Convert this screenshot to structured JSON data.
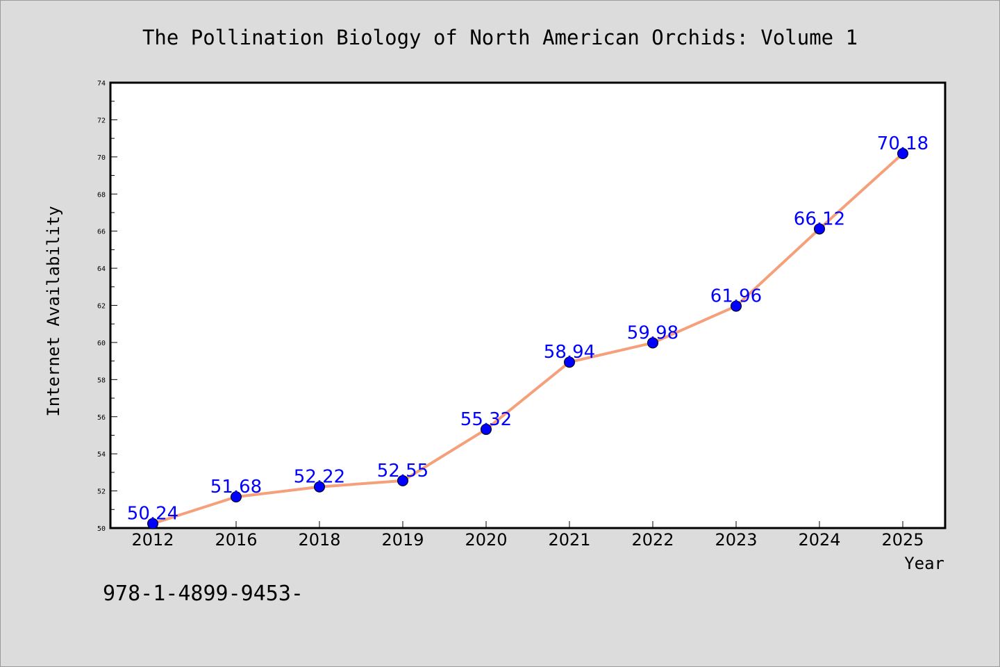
{
  "chart_data": {
    "type": "line",
    "title": "The Pollination Biology of North American Orchids: Volume 1",
    "xlabel": "Year",
    "ylabel": "Internet Availability",
    "categories": [
      "2012",
      "2016",
      "2018",
      "2019",
      "2020",
      "2021",
      "2022",
      "2023",
      "2024",
      "2025"
    ],
    "series": [
      {
        "values": [
          50.24,
          51.68,
          52.22,
          52.55,
          55.32,
          58.94,
          59.98,
          61.96,
          66.12,
          70.18
        ],
        "data_labels": [
          "50.24",
          "51.68",
          "52.22",
          "52.55",
          "55.32",
          "58.94",
          "59.98",
          "61.96",
          "66.12",
          "70.18"
        ]
      }
    ],
    "ylim": [
      50,
      74
    ],
    "yticks": [
      "50",
      "52",
      "54",
      "56",
      "58",
      "60",
      "62",
      "64",
      "66",
      "68",
      "70",
      "72",
      "74"
    ],
    "grid": false,
    "colors": {
      "line": "#f5a07a",
      "marker": "#0000ff",
      "label": "#0000ff",
      "background": "#dcdcdc",
      "plot_background": "#ffffff"
    }
  },
  "footer": {
    "isbn": "978-1-4899-9453-"
  }
}
